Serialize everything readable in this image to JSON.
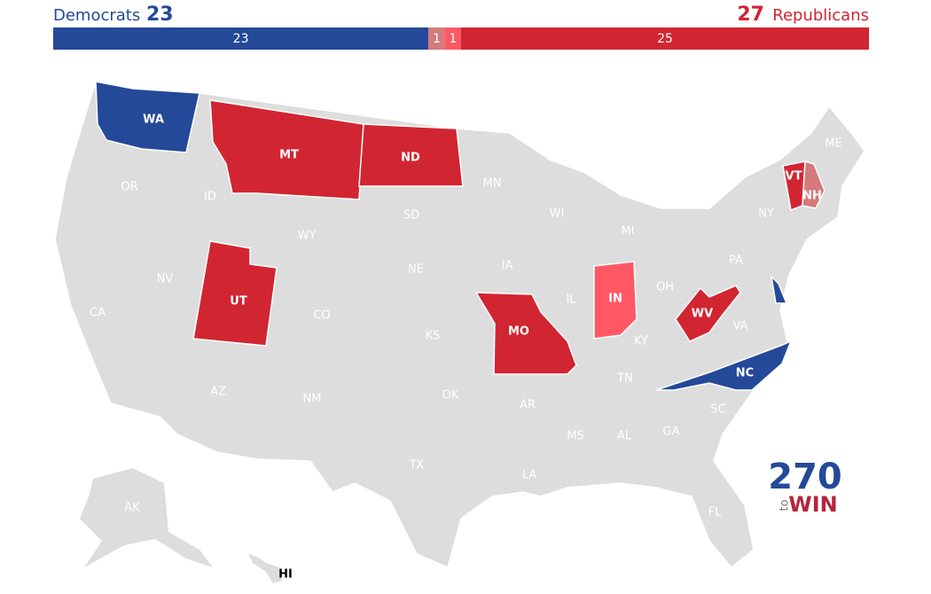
{
  "header": {
    "dem_label": "Democrats",
    "dem_count": 23,
    "rep_count": 27,
    "rep_label": "Republicans"
  },
  "bar": {
    "segments": [
      {
        "value": 23,
        "color": "#244999"
      },
      {
        "value": 1,
        "color": "#d47a7a"
      },
      {
        "value": 1,
        "color": "#ff5865"
      },
      {
        "value": 25,
        "color": "#d22532"
      }
    ]
  },
  "map": {
    "default_color": "#dddddd",
    "states": [
      {
        "label": "WA",
        "color": "#244999"
      },
      {
        "label": "MT",
        "color": "#d22532"
      },
      {
        "label": "ND",
        "color": "#d22532"
      },
      {
        "label": "ME"
      },
      {
        "label": "MN"
      },
      {
        "label": "OR"
      },
      {
        "label": "ID"
      },
      {
        "label": "SD"
      },
      {
        "label": "WI"
      },
      {
        "label": "NY"
      },
      {
        "label": "VT",
        "color": "#d22532"
      },
      {
        "label": "NH",
        "color": "#d47a7a"
      },
      {
        "label": "MI"
      },
      {
        "label": "WY"
      },
      {
        "label": "IA"
      },
      {
        "label": "NE"
      },
      {
        "label": "PA"
      },
      {
        "label": "NV"
      },
      {
        "label": "UT",
        "color": "#d22532"
      },
      {
        "label": "IL"
      },
      {
        "label": "IN",
        "color": "#ff5865"
      },
      {
        "label": "OH"
      },
      {
        "label": "CA"
      },
      {
        "label": "CO"
      },
      {
        "label": "WV",
        "color": "#d22532"
      },
      {
        "label": "MO",
        "color": "#d22532"
      },
      {
        "label": "KS"
      },
      {
        "label": "KY"
      },
      {
        "label": "VA"
      },
      {
        "label": "AZ"
      },
      {
        "label": "NM"
      },
      {
        "label": "OK"
      },
      {
        "label": "TN"
      },
      {
        "label": "NC",
        "color": "#244999"
      },
      {
        "label": "AR"
      },
      {
        "label": "SC"
      },
      {
        "label": "MS"
      },
      {
        "label": "AL"
      },
      {
        "label": "GA"
      },
      {
        "label": "TX"
      },
      {
        "label": "LA"
      },
      {
        "label": "FL"
      },
      {
        "label": "AK"
      },
      {
        "label": "HI"
      },
      {
        "color": "#244999"
      }
    ]
  },
  "logo": {
    "top": "270",
    "side": "to",
    "bottom": "WIN"
  }
}
